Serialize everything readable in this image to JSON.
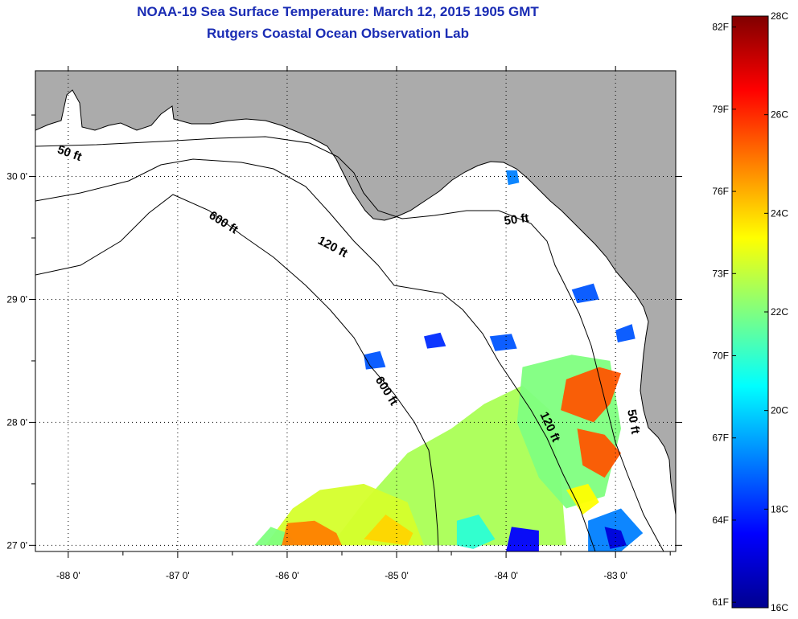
{
  "title": "NOAA-19 Sea Surface Temperature:  March 12, 2015 1905 GMT",
  "subtitle": "Rutgers Coastal Ocean Observation Lab",
  "map": {
    "lon_range": [
      -88.3,
      -82.45
    ],
    "lat_range": [
      26.95,
      30.86
    ],
    "lon_ticks": [
      {
        "value": -88,
        "label": "-88 0'"
      },
      {
        "value": -87,
        "label": "-87 0'"
      },
      {
        "value": -86,
        "label": "-86 0'"
      },
      {
        "value": -85,
        "label": "-85 0'"
      },
      {
        "value": -84,
        "label": "-84 0'"
      },
      {
        "value": -83,
        "label": "-83 0'"
      }
    ],
    "lat_ticks": [
      {
        "value": 30,
        "label": "30 0'"
      },
      {
        "value": 29,
        "label": "29 0'"
      },
      {
        "value": 28,
        "label": "28 0'"
      },
      {
        "value": 27,
        "label": "27 0'"
      }
    ],
    "depth_labels": [
      {
        "text": "50 ft",
        "lon": -88.0,
        "lat": 30.16,
        "rotate": 20
      },
      {
        "text": "600 ft",
        "lon": -86.6,
        "lat": 29.6,
        "rotate": 32
      },
      {
        "text": "120 ft",
        "lon": -85.6,
        "lat": 29.4,
        "rotate": 28
      },
      {
        "text": "50 ft",
        "lon": -83.9,
        "lat": 29.62,
        "rotate": -8
      },
      {
        "text": "600 ft",
        "lon": -85.12,
        "lat": 28.24,
        "rotate": 58
      },
      {
        "text": "120 ft",
        "lon": -83.63,
        "lat": 27.95,
        "rotate": 65
      },
      {
        "text": "50 ft",
        "lon": -82.87,
        "lat": 28.0,
        "rotate": 80
      }
    ]
  },
  "colorbar": {
    "min_c": 16,
    "max_c": 28,
    "stops": [
      "#00008f",
      "#0000ff",
      "#0080ff",
      "#00ffff",
      "#80ff80",
      "#ffff00",
      "#ff8000",
      "#ff0000",
      "#800000"
    ],
    "celsius_labels": [
      "28C",
      "26C",
      "24C",
      "22C",
      "20C",
      "18C",
      "16C"
    ],
    "fahrenheit_labels": [
      "82F",
      "79F",
      "76F",
      "73F",
      "70F",
      "67F",
      "64F",
      "61F"
    ]
  },
  "sst_regions": [
    {
      "temp_c": 22.5,
      "points": [
        [
          -85.6,
          27.0
        ],
        [
          -85.3,
          27.35
        ],
        [
          -84.9,
          27.75
        ],
        [
          -84.5,
          27.95
        ],
        [
          -84.2,
          28.15
        ],
        [
          -83.85,
          28.3
        ],
        [
          -83.6,
          28.1
        ],
        [
          -83.5,
          27.55
        ],
        [
          -83.45,
          27.0
        ]
      ]
    },
    {
      "temp_c": 23.0,
      "points": [
        [
          -86.2,
          27.0
        ],
        [
          -85.95,
          27.3
        ],
        [
          -85.7,
          27.45
        ],
        [
          -85.3,
          27.5
        ],
        [
          -84.9,
          27.35
        ],
        [
          -84.75,
          27.0
        ]
      ]
    },
    {
      "temp_c": 22.0,
      "points": [
        [
          -86.3,
          27.0
        ],
        [
          -86.15,
          27.15
        ],
        [
          -86.0,
          27.1
        ],
        [
          -85.9,
          27.0
        ]
      ]
    },
    {
      "temp_c": 25.0,
      "points": [
        [
          -86.05,
          27.0
        ],
        [
          -86.0,
          27.18
        ],
        [
          -85.75,
          27.2
        ],
        [
          -85.55,
          27.1
        ],
        [
          -85.5,
          27.0
        ]
      ]
    },
    {
      "temp_c": 24.0,
      "points": [
        [
          -85.3,
          27.05
        ],
        [
          -85.1,
          27.25
        ],
        [
          -84.85,
          27.1
        ],
        [
          -84.9,
          27.0
        ]
      ]
    },
    {
      "temp_c": 22.0,
      "points": [
        [
          -83.85,
          28.45
        ],
        [
          -83.4,
          28.55
        ],
        [
          -83.05,
          28.5
        ],
        [
          -82.95,
          27.95
        ],
        [
          -83.1,
          27.4
        ],
        [
          -83.45,
          27.3
        ],
        [
          -83.7,
          27.55
        ],
        [
          -83.9,
          28.0
        ]
      ]
    },
    {
      "temp_c": 25.5,
      "points": [
        [
          -83.45,
          28.35
        ],
        [
          -83.15,
          28.45
        ],
        [
          -82.95,
          28.4
        ],
        [
          -83.05,
          28.15
        ],
        [
          -83.2,
          28.0
        ],
        [
          -83.5,
          28.1
        ]
      ]
    },
    {
      "temp_c": 25.5,
      "points": [
        [
          -83.35,
          27.95
        ],
        [
          -83.1,
          27.9
        ],
        [
          -82.95,
          27.75
        ],
        [
          -83.1,
          27.55
        ],
        [
          -83.3,
          27.65
        ]
      ]
    },
    {
      "temp_c": 23.5,
      "points": [
        [
          -83.45,
          27.45
        ],
        [
          -83.25,
          27.5
        ],
        [
          -83.15,
          27.35
        ],
        [
          -83.3,
          27.25
        ]
      ]
    },
    {
      "temp_c": 19.0,
      "points": [
        [
          -83.25,
          27.2
        ],
        [
          -82.95,
          27.3
        ],
        [
          -82.75,
          27.1
        ],
        [
          -82.95,
          26.95
        ],
        [
          -83.25,
          26.95
        ]
      ]
    },
    {
      "temp_c": 17.0,
      "points": [
        [
          -83.1,
          27.15
        ],
        [
          -82.95,
          27.12
        ],
        [
          -82.9,
          27.0
        ],
        [
          -83.05,
          26.97
        ]
      ]
    },
    {
      "temp_c": 17.5,
      "points": [
        [
          -83.95,
          27.15
        ],
        [
          -83.7,
          27.12
        ],
        [
          -83.7,
          26.95
        ],
        [
          -84.0,
          26.95
        ]
      ]
    },
    {
      "temp_c": 21.0,
      "points": [
        [
          -84.45,
          27.2
        ],
        [
          -84.25,
          27.25
        ],
        [
          -84.1,
          27.05
        ],
        [
          -84.3,
          26.97
        ],
        [
          -84.45,
          27.0
        ]
      ]
    },
    {
      "temp_c": 18.5,
      "points": [
        [
          -83.4,
          29.08
        ],
        [
          -83.2,
          29.13
        ],
        [
          -83.15,
          29.0
        ],
        [
          -83.35,
          28.97
        ]
      ]
    },
    {
      "temp_c": 18.5,
      "points": [
        [
          -84.15,
          28.7
        ],
        [
          -83.95,
          28.72
        ],
        [
          -83.9,
          28.6
        ],
        [
          -84.1,
          28.58
        ]
      ]
    },
    {
      "temp_c": 18.5,
      "points": [
        [
          -85.3,
          28.55
        ],
        [
          -85.15,
          28.58
        ],
        [
          -85.1,
          28.45
        ],
        [
          -85.28,
          28.43
        ]
      ]
    },
    {
      "temp_c": 18.5,
      "points": [
        [
          -83.0,
          28.75
        ],
        [
          -82.85,
          28.8
        ],
        [
          -82.82,
          28.68
        ],
        [
          -82.98,
          28.65
        ]
      ]
    },
    {
      "temp_c": 18.0,
      "points": [
        [
          -84.75,
          28.7
        ],
        [
          -84.6,
          28.73
        ],
        [
          -84.55,
          28.62
        ],
        [
          -84.72,
          28.6
        ]
      ]
    },
    {
      "temp_c": 19.0,
      "points": [
        [
          -84.0,
          30.05
        ],
        [
          -83.9,
          30.05
        ],
        [
          -83.88,
          29.95
        ],
        [
          -83.98,
          29.93
        ]
      ]
    }
  ]
}
